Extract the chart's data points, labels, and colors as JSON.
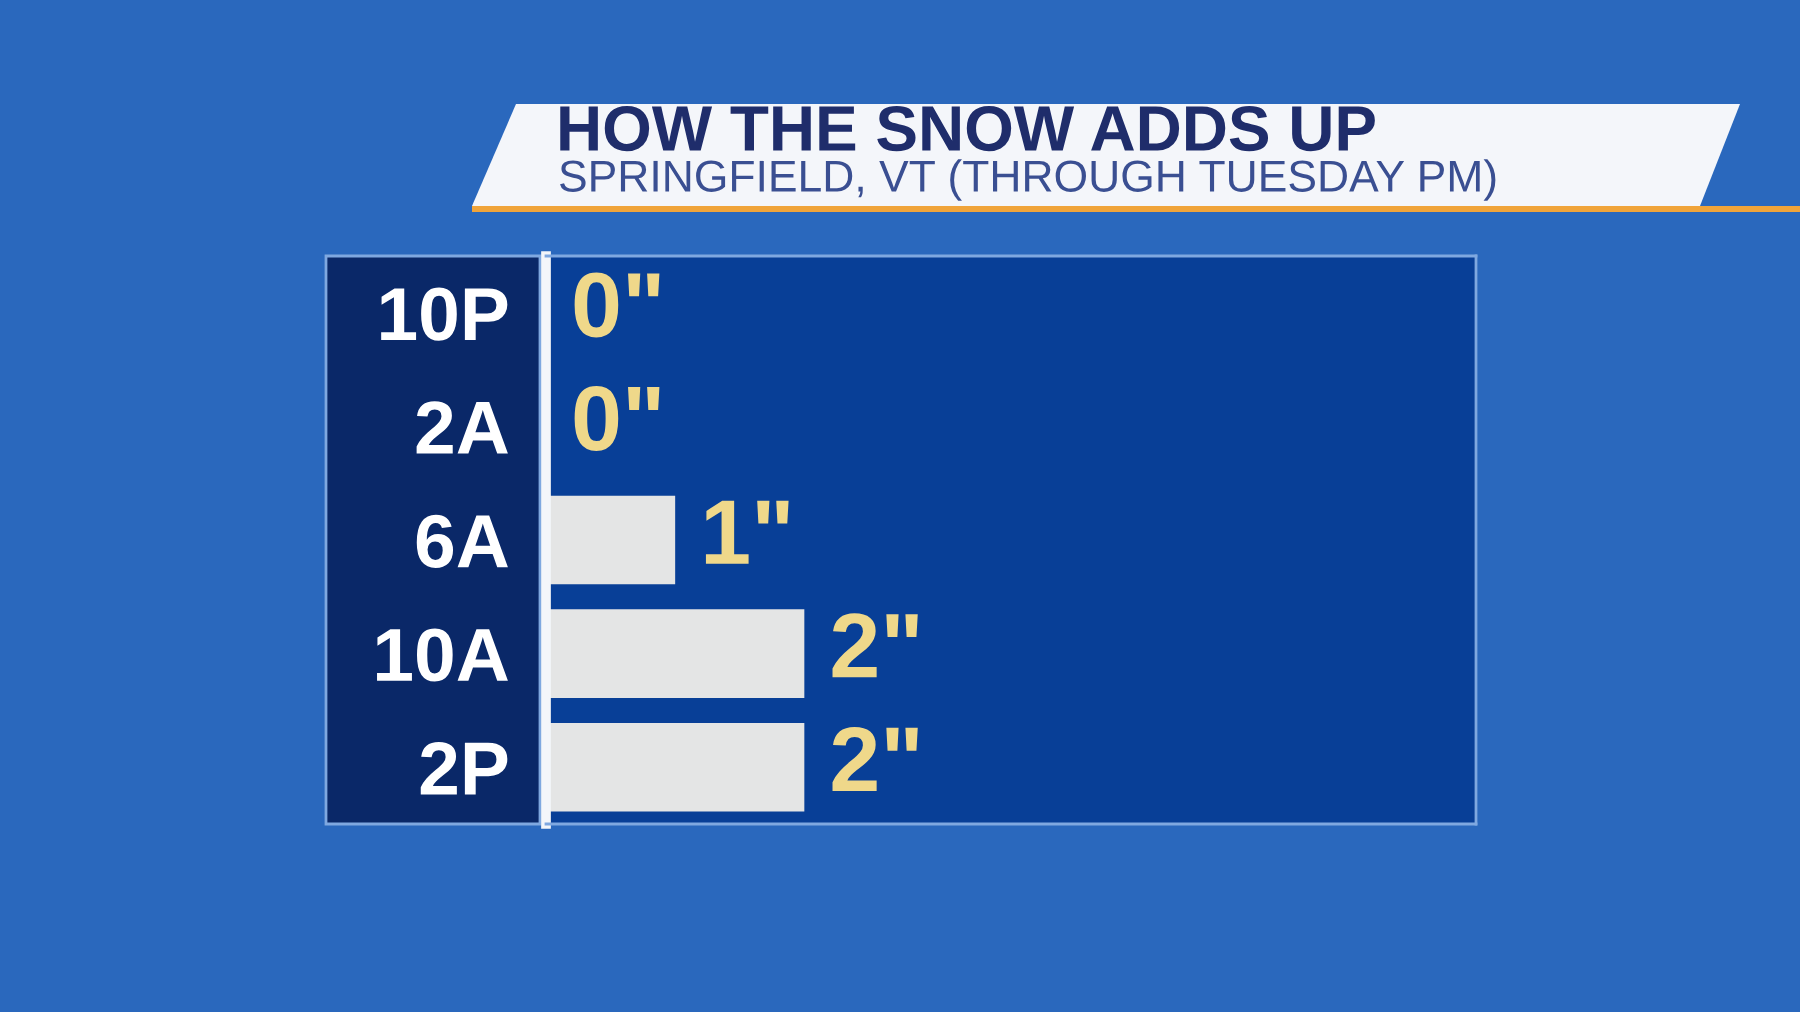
{
  "chart_data": {
    "type": "bar",
    "orientation": "horizontal",
    "title": "HOW THE SNOW ADDS UP",
    "subtitle": "SPRINGFIELD, VT (THROUGH TUESDAY PM)",
    "categories": [
      "10P",
      "2A",
      "6A",
      "10A",
      "2P"
    ],
    "values": [
      0,
      0,
      1,
      2,
      2
    ],
    "value_labels": [
      "0\"",
      "0\"",
      "1\"",
      "2\"",
      "2\""
    ],
    "color": "#e4e5e5",
    "xlim": [
      0,
      7.2
    ],
    "tick_labels": "y",
    "grid": false,
    "legend": false
  }
}
